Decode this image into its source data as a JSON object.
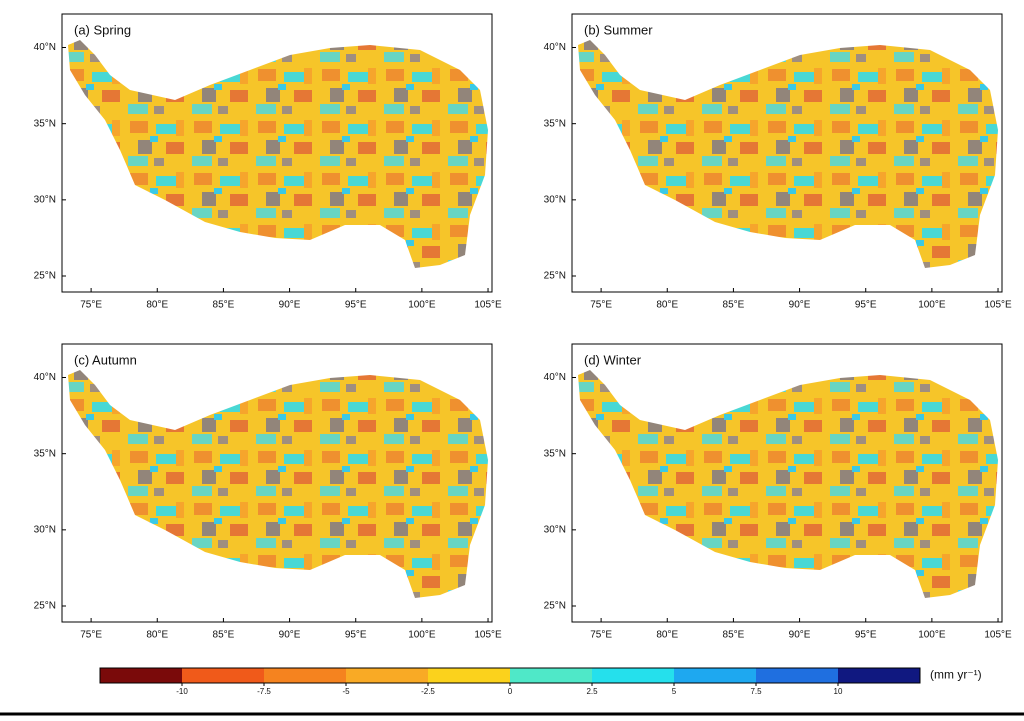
{
  "panels": [
    {
      "label": "(a) Spring"
    },
    {
      "label": "(b) Summer"
    },
    {
      "label": "(c) Autumn"
    },
    {
      "label": "(d) Winter"
    }
  ],
  "xlim": [
    72.8,
    105.3
  ],
  "ylim": [
    23.95,
    42.2
  ],
  "xticks": [
    {
      "value": 75,
      "label": "75°E"
    },
    {
      "value": 80,
      "label": "80°E"
    },
    {
      "value": 85,
      "label": "85°E"
    },
    {
      "value": 90,
      "label": "90°E"
    },
    {
      "value": 95,
      "label": "95°E"
    },
    {
      "value": 100,
      "label": "100°E"
    },
    {
      "value": 105,
      "label": "105°E"
    }
  ],
  "yticks": [
    {
      "value": 25,
      "label": "25°N"
    },
    {
      "value": 30,
      "label": "30°N"
    },
    {
      "value": 35,
      "label": "35°N"
    },
    {
      "value": 40,
      "label": "40°N"
    }
  ],
  "colorbar": {
    "lim": [
      -12.5,
      12.5
    ],
    "ticks": [
      -10,
      -7.5,
      -5,
      -2.5,
      0,
      2.5,
      5,
      7.5,
      10
    ],
    "colors": [
      "#7a0a0a",
      "#f05a1a",
      "#f5831f",
      "#f9aa25",
      "#fbd21c",
      "#4fe8c8",
      "#25e0ec",
      "#1ea8f0",
      "#1f6fe0",
      "#101880"
    ],
    "unit": "(mm yr⁻¹)"
  }
}
